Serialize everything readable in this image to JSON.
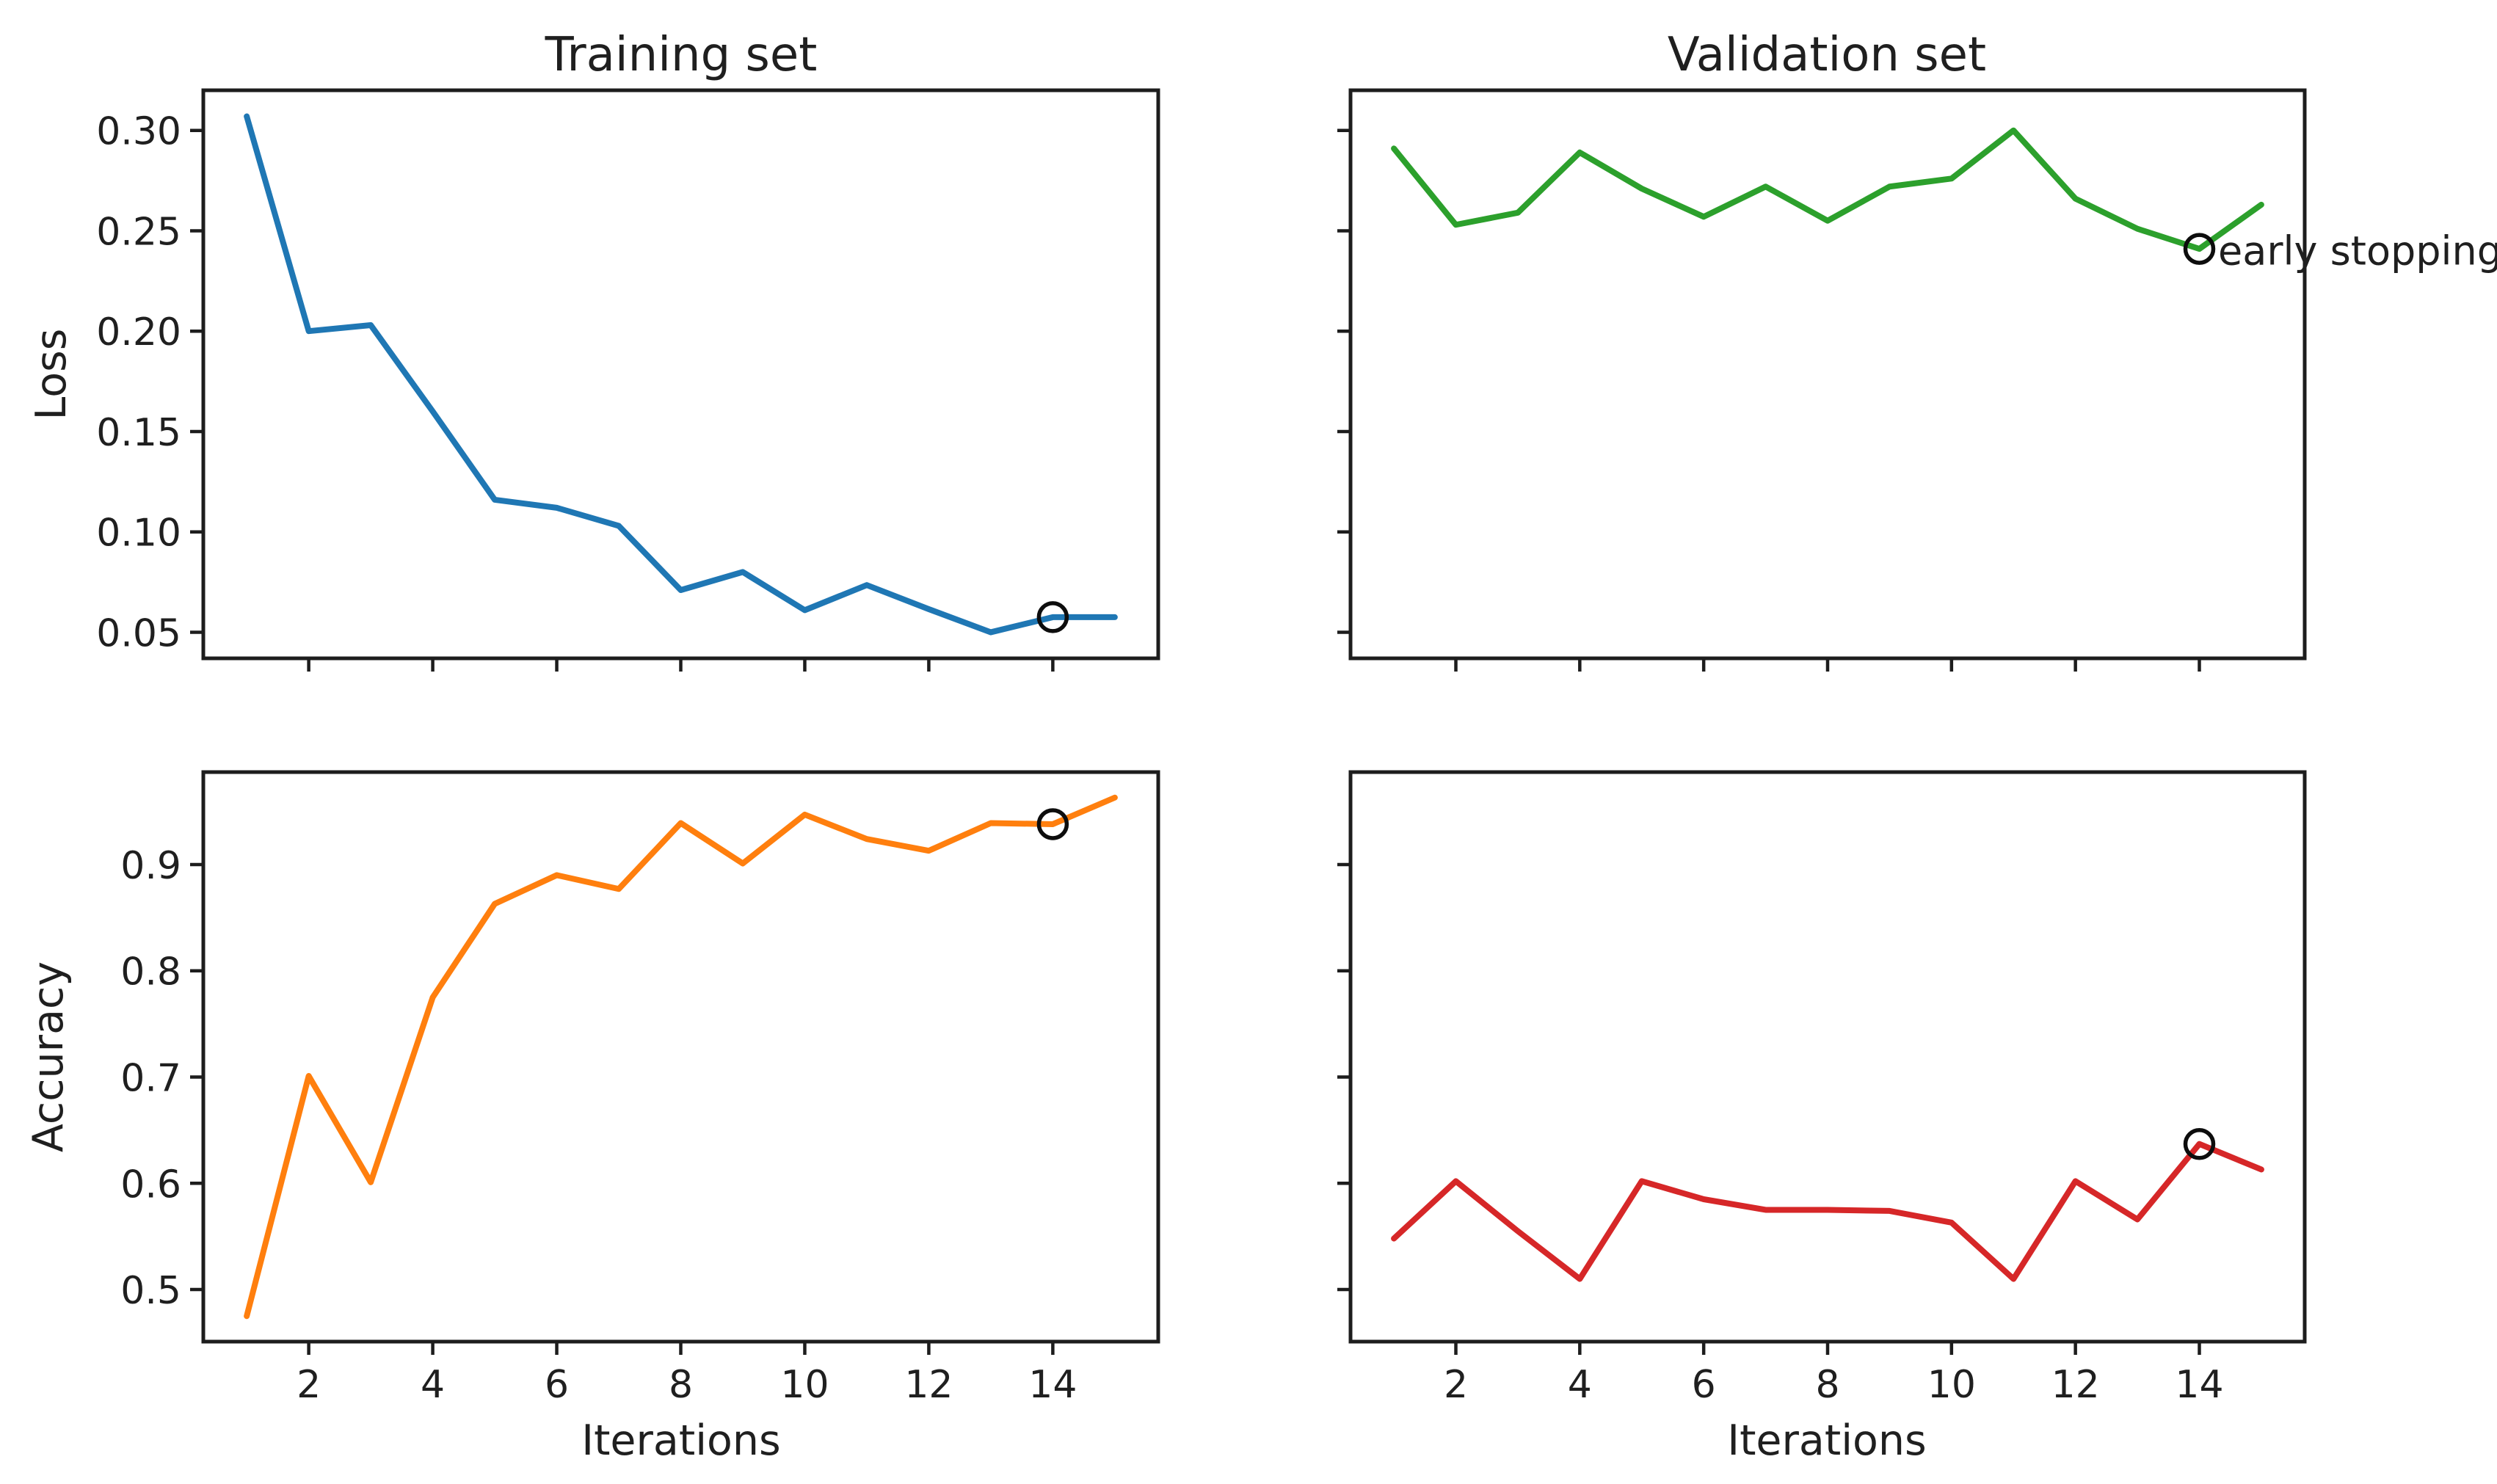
{
  "figure": {
    "titles": {
      "train": "Training set",
      "validation": "Validation set"
    },
    "ylabels": {
      "top": "Loss",
      "bottom": "Accuracy"
    },
    "xlabel": "Iterations",
    "annotation": "early stopping",
    "colors": {
      "train_loss": "#1f77b4",
      "val_loss": "#2ca02c",
      "train_acc": "#ff7f0e",
      "val_acc": "#d62728",
      "axis": "#1d1d1d",
      "text": "#1f1f1f",
      "marker": "#0d0d0d",
      "background": "#ffffff"
    }
  },
  "chart_data": [
    {
      "type": "line",
      "panel": "training-loss",
      "title": "Training set",
      "xlabel": "",
      "ylabel": "Loss",
      "x": [
        1,
        2,
        3,
        4,
        5,
        6,
        7,
        8,
        9,
        10,
        11,
        12,
        13,
        14,
        15
      ],
      "series": [
        {
          "name": "training loss",
          "color": "#1f77b4",
          "values": [
            0.307,
            0.2,
            0.203,
            0.16,
            0.116,
            0.112,
            0.103,
            0.071,
            0.08,
            0.061,
            0.0735,
            0.0615,
            0.05,
            0.0575,
            0.0575
          ]
        }
      ],
      "xlim": [
        0.3,
        15.7
      ],
      "ylim": [
        0.037,
        0.32
      ],
      "xticks": [
        {
          "value": 2,
          "label": "2"
        },
        {
          "value": 4,
          "label": "4"
        },
        {
          "value": 6,
          "label": "6"
        },
        {
          "value": 8,
          "label": "8"
        },
        {
          "value": 10,
          "label": "10"
        },
        {
          "value": 12,
          "label": "12"
        },
        {
          "value": 14,
          "label": "14"
        }
      ],
      "yticks": [
        {
          "value": 0.05,
          "label": "0.05"
        },
        {
          "value": 0.1,
          "label": "0.10"
        },
        {
          "value": 0.15,
          "label": "0.15"
        },
        {
          "value": 0.2,
          "label": "0.20"
        },
        {
          "value": 0.25,
          "label": "0.25"
        },
        {
          "value": 0.3,
          "label": "0.30"
        }
      ],
      "show_xtick_labels": false,
      "show_ytick_labels": true,
      "grid": false,
      "legend": null,
      "marker": {
        "x": 14,
        "y": 0.0575
      }
    },
    {
      "type": "line",
      "panel": "validation-loss",
      "title": "Validation set",
      "xlabel": "",
      "ylabel": "",
      "x": [
        1,
        2,
        3,
        4,
        5,
        6,
        7,
        8,
        9,
        10,
        11,
        12,
        13,
        14,
        15
      ],
      "series": [
        {
          "name": "validation loss",
          "color": "#2ca02c",
          "values": [
            0.291,
            0.253,
            0.259,
            0.289,
            0.271,
            0.257,
            0.272,
            0.255,
            0.272,
            0.276,
            0.3,
            0.266,
            0.251,
            0.241,
            0.263
          ]
        }
      ],
      "xlim": [
        0.3,
        15.7
      ],
      "ylim": [
        0.037,
        0.32
      ],
      "xticks": [
        {
          "value": 2,
          "label": "2"
        },
        {
          "value": 4,
          "label": "4"
        },
        {
          "value": 6,
          "label": "6"
        },
        {
          "value": 8,
          "label": "8"
        },
        {
          "value": 10,
          "label": "10"
        },
        {
          "value": 12,
          "label": "12"
        },
        {
          "value": 14,
          "label": "14"
        }
      ],
      "yticks": [
        {
          "value": 0.05,
          "label": "0.05"
        },
        {
          "value": 0.1,
          "label": "0.10"
        },
        {
          "value": 0.15,
          "label": "0.15"
        },
        {
          "value": 0.2,
          "label": "0.20"
        },
        {
          "value": 0.25,
          "label": "0.25"
        },
        {
          "value": 0.3,
          "label": "0.30"
        }
      ],
      "show_xtick_labels": false,
      "show_ytick_labels": false,
      "grid": false,
      "legend": null,
      "marker": {
        "x": 14,
        "y": 0.241,
        "annotation": "early stopping"
      }
    },
    {
      "type": "line",
      "panel": "training-accuracy",
      "title": "",
      "xlabel": "Iterations",
      "ylabel": "Accuracy",
      "x": [
        1,
        2,
        3,
        4,
        5,
        6,
        7,
        8,
        9,
        10,
        11,
        12,
        13,
        14,
        15
      ],
      "series": [
        {
          "name": "training accuracy",
          "color": "#ff7f0e",
          "values": [
            0.475,
            0.701,
            0.601,
            0.775,
            0.863,
            0.89,
            0.877,
            0.939,
            0.901,
            0.947,
            0.924,
            0.913,
            0.939,
            0.938,
            0.963
          ]
        }
      ],
      "xlim": [
        0.3,
        15.7
      ],
      "ylim": [
        0.451,
        0.987
      ],
      "xticks": [
        {
          "value": 2,
          "label": "2"
        },
        {
          "value": 4,
          "label": "4"
        },
        {
          "value": 6,
          "label": "6"
        },
        {
          "value": 8,
          "label": "8"
        },
        {
          "value": 10,
          "label": "10"
        },
        {
          "value": 12,
          "label": "12"
        },
        {
          "value": 14,
          "label": "14"
        }
      ],
      "yticks": [
        {
          "value": 0.5,
          "label": "0.5"
        },
        {
          "value": 0.6,
          "label": "0.6"
        },
        {
          "value": 0.7,
          "label": "0.7"
        },
        {
          "value": 0.8,
          "label": "0.8"
        },
        {
          "value": 0.9,
          "label": "0.9"
        }
      ],
      "show_xtick_labels": true,
      "show_ytick_labels": true,
      "grid": false,
      "legend": null,
      "marker": {
        "x": 14,
        "y": 0.938
      }
    },
    {
      "type": "line",
      "panel": "validation-accuracy",
      "title": "",
      "xlabel": "Iterations",
      "ylabel": "",
      "x": [
        1,
        2,
        3,
        4,
        5,
        6,
        7,
        8,
        9,
        10,
        11,
        12,
        13,
        14,
        15
      ],
      "series": [
        {
          "name": "validation accuracy",
          "color": "#d62728",
          "values": [
            0.548,
            0.602,
            0.555,
            0.51,
            0.602,
            0.585,
            0.575,
            0.575,
            0.574,
            0.563,
            0.51,
            0.602,
            0.566,
            0.637,
            0.613
          ]
        }
      ],
      "xlim": [
        0.3,
        15.7
      ],
      "ylim": [
        0.451,
        0.987
      ],
      "xticks": [
        {
          "value": 2,
          "label": "2"
        },
        {
          "value": 4,
          "label": "4"
        },
        {
          "value": 6,
          "label": "6"
        },
        {
          "value": 8,
          "label": "8"
        },
        {
          "value": 10,
          "label": "10"
        },
        {
          "value": 12,
          "label": "12"
        },
        {
          "value": 14,
          "label": "14"
        }
      ],
      "yticks": [
        {
          "value": 0.5,
          "label": "0.5"
        },
        {
          "value": 0.6,
          "label": "0.6"
        },
        {
          "value": 0.7,
          "label": "0.7"
        },
        {
          "value": 0.8,
          "label": "0.8"
        },
        {
          "value": 0.9,
          "label": "0.9"
        }
      ],
      "show_xtick_labels": true,
      "show_ytick_labels": false,
      "grid": false,
      "legend": null,
      "marker": {
        "x": 14,
        "y": 0.637
      }
    }
  ]
}
